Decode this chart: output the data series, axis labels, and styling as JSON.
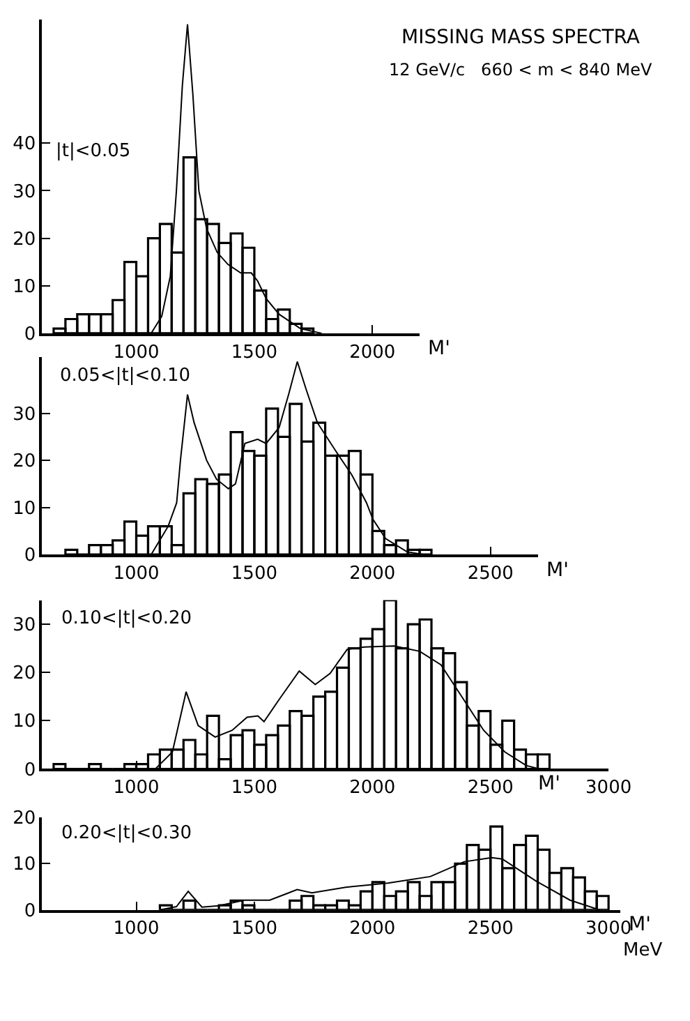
{
  "chart_data": [
    {
      "type": "histogram",
      "title": "MISSING MASS SPECTRA",
      "subtitle": "12 GeV/c   660 < m < 840 MeV",
      "xlabel": "M'",
      "annotations": [
        "|t|<0.05"
      ],
      "xlim": [
        600,
        2200
      ],
      "xticks": [
        1000,
        1500,
        2000
      ],
      "ylim": [
        0,
        66
      ],
      "yticks": [
        0,
        10,
        20,
        30,
        40
      ],
      "series": [
        {
          "color": "#000000",
          "bins": [
            650,
            700,
            750,
            800,
            850,
            900,
            950,
            1000,
            1050,
            1100,
            1150,
            1200,
            1250,
            1300,
            1350,
            1400,
            1450,
            1500,
            1550,
            1600,
            1650,
            1700,
            1750
          ],
          "values": [
            1,
            3,
            4,
            4,
            4,
            7,
            15,
            12,
            20,
            23,
            17,
            37,
            24,
            23,
            19,
            21,
            18,
            9,
            3,
            5,
            2,
            1
          ]
        },
        {
          "type": "line",
          "color": "#000000",
          "marker": "none",
          "line_style": "solid",
          "x": [
            1063,
            1108,
            1144,
            1170,
            1195,
            1217,
            1240,
            1265,
            1298,
            1343,
            1388,
            1442,
            1487,
            1514,
            1550,
            1605,
            1695,
            1785
          ],
          "values": [
            0,
            3.6,
            12,
            30,
            52,
            65,
            50,
            30,
            22,
            17,
            14.5,
            12.7,
            12.7,
            11,
            7.3,
            4,
            1,
            0
          ]
        }
      ]
    },
    {
      "type": "histogram",
      "xlabel": "M'",
      "annotations": [
        "0.05<|t|<0.10"
      ],
      "xlim": [
        600,
        2700
      ],
      "xticks": [
        1000,
        1500,
        2000,
        2500
      ],
      "ylim": [
        0,
        42
      ],
      "yticks": [
        0,
        10,
        20,
        30
      ],
      "series": [
        {
          "color": "#000000",
          "bins": [
            700,
            750,
            800,
            850,
            900,
            950,
            1000,
            1050,
            1100,
            1150,
            1200,
            1250,
            1300,
            1350,
            1400,
            1450,
            1500,
            1550,
            1600,
            1650,
            1700,
            1750,
            1800,
            1850,
            1900,
            1950,
            2000,
            2050,
            2100,
            2150,
            2200,
            2250
          ],
          "values": [
            1,
            0,
            2,
            2,
            3,
            7,
            4,
            6,
            6,
            2,
            13,
            16,
            15,
            17,
            26,
            22,
            21,
            31,
            25,
            32,
            24,
            28,
            21,
            21,
            22,
            17,
            5,
            2,
            3,
            1,
            1
          ]
        },
        {
          "type": "line",
          "color": "#000000",
          "marker": "none",
          "line_style": "solid",
          "x": [
            1063,
            1135,
            1171,
            1187,
            1217,
            1245,
            1298,
            1340,
            1390,
            1420,
            1460,
            1514,
            1550,
            1605,
            1645,
            1682,
            1720,
            1767,
            1858,
            1912,
            1975,
            2002,
            2056,
            2146,
            2218
          ],
          "values": [
            0,
            6,
            11,
            20,
            34,
            28,
            20,
            16,
            14,
            15,
            23.6,
            24.5,
            23.6,
            27,
            34,
            41,
            35,
            28,
            21,
            17,
            11,
            7.5,
            3.4,
            0.6,
            0
          ]
        }
      ]
    },
    {
      "type": "histogram",
      "xlabel": "M'",
      "annotations": [
        "0.10<|t|<0.20"
      ],
      "xlim": [
        600,
        3000
      ],
      "xticks": [
        1000,
        1500,
        2000,
        2500,
        3000
      ],
      "ylim": [
        0,
        35
      ],
      "yticks": [
        0,
        10,
        20,
        30
      ],
      "series": [
        {
          "color": "#000000",
          "bins": [
            650,
            700,
            750,
            800,
            850,
            900,
            950,
            1000,
            1050,
            1100,
            1150,
            1200,
            1250,
            1300,
            1350,
            1400,
            1450,
            1500,
            1550,
            1600,
            1650,
            1700,
            1750,
            1800,
            1850,
            1900,
            1950,
            2000,
            2050,
            2100,
            2150,
            2200,
            2250,
            2300,
            2350,
            2400,
            2450,
            2500,
            2550,
            2600,
            2650,
            2700,
            2750
          ],
          "values": [
            1,
            0,
            0,
            1,
            0,
            0,
            1,
            1,
            3,
            4,
            4,
            6,
            3,
            11,
            2,
            7,
            8,
            5,
            7,
            9,
            12,
            11,
            15,
            16,
            21,
            25,
            27,
            29,
            35,
            25,
            30,
            31,
            25,
            24,
            18,
            9,
            12,
            5,
            10,
            4,
            3,
            3
          ]
        },
        {
          "type": "line",
          "color": "#000000",
          "marker": "none",
          "line_style": "solid",
          "x": [
            1081,
            1153,
            1211,
            1262,
            1334,
            1406,
            1469,
            1515,
            1541,
            1605,
            1690,
            1758,
            1821,
            1893,
            1966,
            2092,
            2200,
            2290,
            2381,
            2471,
            2561,
            2651,
            2705
          ],
          "values": [
            0,
            3.5,
            16,
            9,
            6.6,
            8,
            10.7,
            11,
            9.8,
            14.4,
            20.3,
            17.5,
            19.8,
            24.8,
            25.3,
            25.5,
            24.4,
            21.6,
            14.8,
            8,
            3.5,
            0.7,
            0
          ]
        }
      ]
    },
    {
      "type": "histogram",
      "xlabel": "M'",
      "annotations": [
        "0.20<|t|<0.30",
        "MeV"
      ],
      "xlim": [
        600,
        3050
      ],
      "xticks": [
        1000,
        1500,
        2000,
        2500,
        3000
      ],
      "ylim": [
        0,
        20
      ],
      "yticks": [
        0,
        10,
        20
      ],
      "series": [
        {
          "color": "#000000",
          "bins": [
            1100,
            1150,
            1200,
            1250,
            1300,
            1350,
            1400,
            1450,
            1500,
            1550,
            1600,
            1650,
            1700,
            1750,
            1800,
            1850,
            1900,
            1950,
            2000,
            2050,
            2100,
            2150,
            2200,
            2250,
            2300,
            2350,
            2400,
            2450,
            2500,
            2550,
            2600,
            2650,
            2700,
            2750,
            2800,
            2850,
            2900,
            2950,
            3000
          ],
          "values": [
            1,
            0,
            2,
            0,
            0,
            1,
            2,
            1,
            0,
            0,
            0,
            2,
            3,
            1,
            1,
            2,
            1,
            4,
            6,
            3,
            4,
            6,
            3,
            6,
            6,
            10,
            14,
            13,
            18,
            9,
            14,
            16,
            13,
            8,
            9,
            7,
            4,
            3
          ]
        },
        {
          "type": "line",
          "color": "#000000",
          "marker": "none",
          "line_style": "solid",
          "x": [
            1100,
            1170,
            1220,
            1278,
            1350,
            1457,
            1565,
            1636,
            1681,
            1744,
            1887,
            2066,
            2245,
            2389,
            2505,
            2550,
            2694,
            2837,
            2962
          ],
          "values": [
            0,
            0.7,
            4,
            0.6,
            0.9,
            2.1,
            2.1,
            3.5,
            4.4,
            3.7,
            4.9,
            5.8,
            7.2,
            10.4,
            11.3,
            11,
            6.2,
            2.1,
            0
          ]
        }
      ]
    }
  ]
}
